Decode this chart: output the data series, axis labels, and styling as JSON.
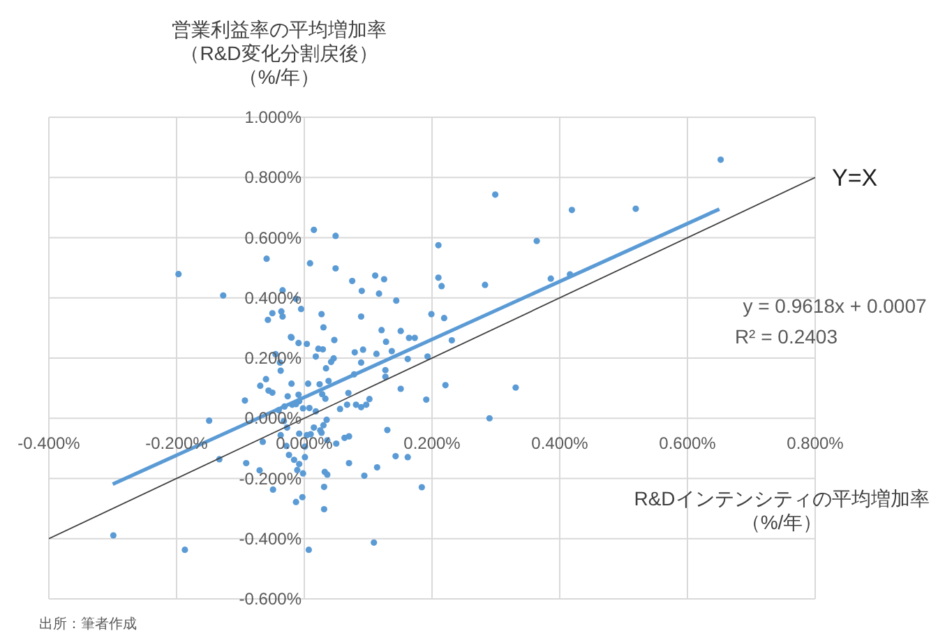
{
  "chart_data": {
    "type": "scatter",
    "ylabel": "営業利益率の平均増加率（R&D変化分割戻後）（%/年）",
    "xlabel": "R&Dインテンシティの平均増加率（%/年）",
    "xlim": [
      -0.4,
      0.8
    ],
    "ylim": [
      -0.6,
      1.0
    ],
    "xticks": [
      {
        "value": -0.4,
        "label": "-0.400%"
      },
      {
        "value": -0.2,
        "label": "-0.200%"
      },
      {
        "value": 0,
        "label": "0.000%"
      },
      {
        "value": 0.2,
        "label": "0.200%"
      },
      {
        "value": 0.4,
        "label": "0.400%"
      },
      {
        "value": 0.6,
        "label": "0.600%"
      },
      {
        "value": 0.8,
        "label": "0.800%"
      }
    ],
    "yticks": [
      {
        "value": -0.6,
        "label": "-0.600%"
      },
      {
        "value": -0.4,
        "label": "-0.400%"
      },
      {
        "value": -0.2,
        "label": "-0.200%"
      },
      {
        "value": 0,
        "label": "0.000%"
      },
      {
        "value": 0.2,
        "label": "0.200%"
      },
      {
        "value": 0.4,
        "label": "0.400%"
      },
      {
        "value": 0.6,
        "label": "0.600%"
      },
      {
        "value": 0.8,
        "label": "0.800%"
      },
      {
        "value": 1.0,
        "label": "1.000%"
      }
    ],
    "grid": true,
    "marker": "circle",
    "series": [
      {
        "color": "#5b9bd5",
        "x": [
          -0.197,
          -0.059,
          0.015,
          0.049,
          0.009,
          0.049,
          0.075,
          0.111,
          0.125,
          0.09,
          0.117,
          0.144,
          0.21,
          0.21,
          0.215,
          0.283,
          -0.057,
          -0.05,
          -0.036,
          -0.034,
          -0.034,
          -0.013,
          -0.005,
          0.027,
          0.03,
          0.047,
          0.089,
          0.121,
          0.128,
          0.151,
          0.164,
          0.173,
          0.199,
          0.219,
          0.231,
          -0.02,
          -0.009,
          0.004,
          -0.127,
          0.652,
          0.299,
          0.419,
          0.519,
          0.364,
          0.386,
          0.416,
          -0.299,
          -0.187,
          -0.149,
          -0.133,
          -0.093,
          -0.091,
          -0.07,
          -0.049,
          -0.065,
          -0.069,
          -0.06,
          -0.056,
          -0.05,
          -0.045,
          -0.038,
          -0.037,
          -0.021,
          -0.02,
          -0.026,
          -0.031,
          -0.04,
          -0.032,
          -0.027,
          -0.037,
          -0.028,
          -0.024,
          -0.016,
          -0.008,
          -0.011,
          -0.002,
          -0.013,
          -0.003,
          0.007,
          0.001,
          0.001,
          -0.008,
          0.004,
          0.01,
          0.015,
          0.025,
          0.027,
          0.03,
          0.035,
          0.018,
          0.008,
          -0.002,
          -0.009,
          -0.008,
          -0.013,
          -0.019,
          0.006,
          0.024,
          0.028,
          0.033,
          0.038,
          0.034,
          0.042,
          0.046,
          0.029,
          0.022,
          0.018,
          0.063,
          0.07,
          0.07,
          0.05,
          0.036,
          0.032,
          0.036,
          0.031,
          0.031,
          0.069,
          0.078,
          0.089,
          0.092,
          0.079,
          0.056,
          0.067,
          0.081,
          0.089,
          0.097,
          0.102,
          0.094,
          0.114,
          0.109,
          0.113,
          0.127,
          0.127,
          0.13,
          0.137,
          0.143,
          0.151,
          0.162,
          0.162,
          0.184,
          0.191,
          0.193,
          0.221,
          0.29,
          0.331
        ],
        "values": [
          0.479,
          0.53,
          0.626,
          0.606,
          0.515,
          0.498,
          0.456,
          0.474,
          0.462,
          0.423,
          0.414,
          0.391,
          0.575,
          0.467,
          0.439,
          0.443,
          0.327,
          0.349,
          0.355,
          0.425,
          0.338,
          0.397,
          0.363,
          0.346,
          0.302,
          0.26,
          0.338,
          0.293,
          0.254,
          0.29,
          0.267,
          0.267,
          0.346,
          0.333,
          0.259,
          0.268,
          0.25,
          0.247,
          0.408,
          0.859,
          0.743,
          0.692,
          0.696,
          0.589,
          0.464,
          0.478,
          -0.389,
          -0.437,
          -0.008,
          -0.136,
          0.059,
          -0.149,
          -0.173,
          -0.237,
          -0.078,
          0.108,
          0.13,
          0.092,
          0.085,
          0.213,
          0.185,
          0.158,
          0.27,
          0.115,
          0.073,
          0.039,
          0.027,
          -0.009,
          -0.031,
          -0.056,
          -0.092,
          -0.122,
          -0.138,
          -0.152,
          -0.172,
          -0.183,
          -0.278,
          -0.262,
          -0.437,
          -0.129,
          -0.094,
          -0.051,
          -0.056,
          -0.053,
          -0.031,
          -0.04,
          -0.048,
          -0.023,
          -0.005,
          0.023,
          0.034,
          0.033,
          0.078,
          0.057,
          0.047,
          0.045,
          0.115,
          0.113,
          0.08,
          0.065,
          0.124,
          0.166,
          0.187,
          0.199,
          0.229,
          0.231,
          0.205,
          -0.065,
          -0.06,
          -0.149,
          -0.084,
          -0.073,
          -0.178,
          -0.187,
          -0.228,
          -0.302,
          0.084,
          0.146,
          0.185,
          0.228,
          0.219,
          0.031,
          0.045,
          0.045,
          0.037,
          0.045,
          0.064,
          -0.191,
          -0.163,
          -0.413,
          0.214,
          0.16,
          0.138,
          -0.039,
          0.223,
          -0.126,
          0.098,
          -0.129,
          0.197,
          -0.229,
          0.062,
          0.205,
          0.11,
          0.0,
          0.102
        ]
      },
      {
        "type": "line",
        "marker": "none",
        "color": "#5b9bd5",
        "x": [
          -0.3,
          0.65
        ],
        "values": [
          -0.219,
          0.695
        ]
      },
      {
        "type": "line",
        "marker": "none",
        "color": "#404040",
        "x": [
          -0.4,
          0.8
        ],
        "values": [
          -0.4,
          0.8
        ]
      }
    ],
    "annotations": [
      {
        "text": "Y=X",
        "x": 0.8,
        "y": 0.8
      },
      "y = 0.9618x + 0.0007",
      "R² = 0.2403",
      "出所：筆者作成"
    ]
  }
}
